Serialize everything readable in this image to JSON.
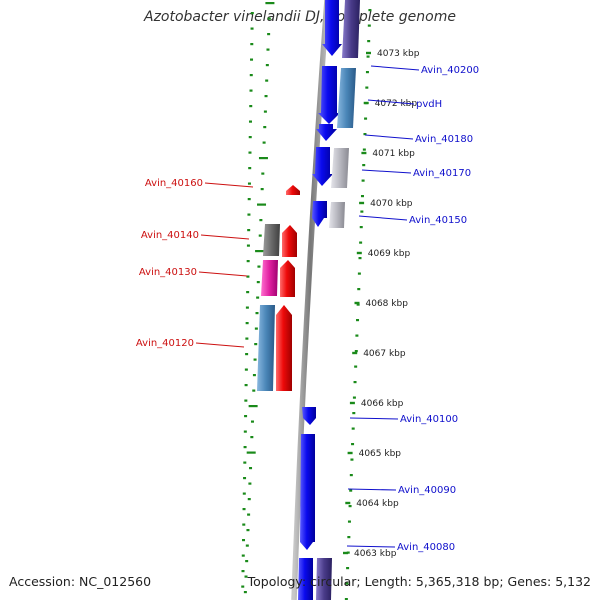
{
  "title": "Azotobacter vinelandii DJ, complete genome",
  "footer": {
    "accession": "Accession: NC_012560",
    "summary": "Topology: circular; Length: 5,365,318 bp; Genes: 5,132"
  },
  "ticks": [
    "4073 kbp",
    "4072 kbp",
    "4071 kbp",
    "4070 kbp",
    "4069 kbp",
    "4068 kbp",
    "4067 kbp",
    "4066 kbp",
    "4065 kbp",
    "4064 kbp",
    "4063 kbp"
  ],
  "labels_forward": [
    {
      "id": "Avin_40200",
      "name": "Avin_40200"
    },
    {
      "id": "pvdH",
      "name": "pvdH"
    },
    {
      "id": "Avin_40180",
      "name": "Avin_40180"
    },
    {
      "id": "Avin_40170",
      "name": "Avin_40170"
    },
    {
      "id": "Avin_40150",
      "name": "Avin_40150"
    },
    {
      "id": "Avin_40100",
      "name": "Avin_40100"
    },
    {
      "id": "Avin_40090",
      "name": "Avin_40090"
    },
    {
      "id": "Avin_40080",
      "name": "Avin_40080"
    }
  ],
  "labels_reverse": [
    {
      "id": "Avin_40160",
      "name": "Avin_40160"
    },
    {
      "id": "Avin_40140",
      "name": "Avin_40140"
    },
    {
      "id": "Avin_40130",
      "name": "Avin_40130"
    },
    {
      "id": "Avin_40120",
      "name": "Avin_40120"
    }
  ],
  "colors": {
    "forward_gene": "#0a0aee",
    "reverse_gene": "#ee0a0a",
    "forward_label": "#1010cc",
    "reverse_label": "#cc1010",
    "cds_steel": "#4a86b8",
    "cds_gray": "#b8b8c0",
    "cds_purple": "#4a3c8a",
    "cds_dark": "#6a6a6a",
    "cds_magenta": "#e020a0",
    "backbone": "#888888",
    "dots": "#1a8a1a"
  }
}
